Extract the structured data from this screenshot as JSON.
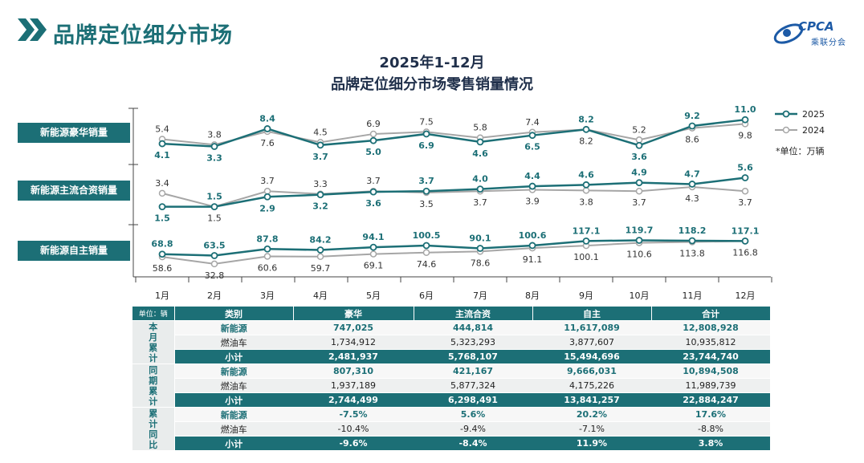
{
  "header": {
    "title": "品牌定位细分市场",
    "logo_text": "CPCA",
    "logo_sub": "乘联分会"
  },
  "chart_data": {
    "type": "line",
    "title": "2025年1-12月",
    "subtitle": "品牌定位细分市场零售销量情况",
    "unit": "*单位：万辆",
    "categories": [
      "1月",
      "2月",
      "3月",
      "4月",
      "5月",
      "6月",
      "7月",
      "8月",
      "9月",
      "10月",
      "11月",
      "12月"
    ],
    "legend": [
      "2025",
      "2024"
    ],
    "legend_position": "top-right",
    "panels": [
      {
        "label": "新能源豪华销量",
        "series": [
          {
            "name": "2025",
            "values": [
              4.1,
              3.3,
              8.4,
              3.7,
              5.0,
              6.9,
              4.6,
              6.5,
              8.2,
              3.6,
              9.2,
              11.0
            ]
          },
          {
            "name": "2024",
            "values": [
              5.4,
              3.8,
              7.6,
              4.5,
              6.9,
              7.5,
              5.8,
              7.4,
              8.2,
              5.2,
              8.6,
              9.8
            ]
          }
        ]
      },
      {
        "label": "新能源主流合资销量",
        "series": [
          {
            "name": "2025",
            "values": [
              1.5,
              1.5,
              2.9,
              3.2,
              3.6,
              3.7,
              4.0,
              4.4,
              4.6,
              4.9,
              4.7,
              5.6
            ]
          },
          {
            "name": "2024",
            "values": [
              3.4,
              1.5,
              3.7,
              3.3,
              3.7,
              3.5,
              3.7,
              3.9,
              3.8,
              3.7,
              4.3,
              3.7
            ]
          }
        ]
      },
      {
        "label": "新能源自主销量",
        "series": [
          {
            "name": "2025",
            "values": [
              68.8,
              63.5,
              87.8,
              84.2,
              94.1,
              100.5,
              90.1,
              100.6,
              117.1,
              119.7,
              118.2,
              117.1
            ]
          },
          {
            "name": "2024",
            "values": [
              58.6,
              32.8,
              60.6,
              59.7,
              69.1,
              74.6,
              78.6,
              91.1,
              100.1,
              110.6,
              113.8,
              116.8
            ]
          }
        ]
      }
    ]
  },
  "table": {
    "unit_label": "单位：辆",
    "headers": [
      "类别",
      "豪华",
      "主流合资",
      "自主",
      "合计"
    ],
    "groups": [
      {
        "label": [
          "本",
          "月",
          "累",
          "计"
        ],
        "rows": [
          {
            "type": "ev",
            "cells": [
              "新能源",
              "747,025",
              "444,814",
              "11,617,089",
              "12,808,928"
            ]
          },
          {
            "type": "fuel",
            "cells": [
              "燃油车",
              "1,734,912",
              "5,323,293",
              "3,877,607",
              "10,935,812"
            ]
          },
          {
            "type": "sub",
            "cells": [
              "小计",
              "2,481,937",
              "5,768,107",
              "15,494,696",
              "23,744,740"
            ]
          }
        ]
      },
      {
        "label": [
          "同",
          "期",
          "累",
          "计"
        ],
        "rows": [
          {
            "type": "ev",
            "cells": [
              "新能源",
              "807,310",
              "421,167",
              "9,666,031",
              "10,894,508"
            ]
          },
          {
            "type": "fuel",
            "cells": [
              "燃油车",
              "1,937,189",
              "5,877,324",
              "4,175,226",
              "11,989,739"
            ]
          },
          {
            "type": "sub",
            "cells": [
              "小计",
              "2,744,499",
              "6,298,491",
              "13,841,257",
              "22,884,247"
            ]
          }
        ]
      },
      {
        "label": [
          "累",
          "计",
          "同",
          "比"
        ],
        "rows": [
          {
            "type": "ev",
            "cells": [
              "新能源",
              "-7.5%",
              "5.6%",
              "20.2%",
              "17.6%"
            ]
          },
          {
            "type": "fuel",
            "cells": [
              "燃油车",
              "-10.4%",
              "-9.4%",
              "-7.1%",
              "-8.8%"
            ]
          },
          {
            "type": "sub",
            "cells": [
              "小计",
              "-9.6%",
              "-8.4%",
              "11.9%",
              "3.8%"
            ]
          }
        ]
      }
    ]
  },
  "colors": {
    "teal": "#1c6f76",
    "grey": "#a6a6a6",
    "dark_label": "#333333"
  }
}
